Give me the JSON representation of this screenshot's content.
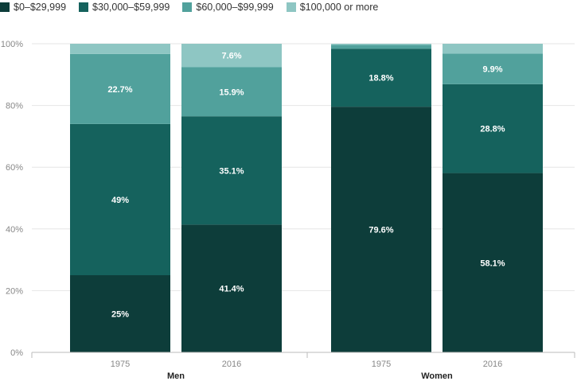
{
  "chart_data": {
    "type": "bar",
    "stacked": true,
    "categories": [
      "1975",
      "2016",
      "1975",
      "2016"
    ],
    "groups": [
      {
        "label": "Men",
        "categories": [
          "1975",
          "2016"
        ]
      },
      {
        "label": "Women",
        "categories": [
          "1975",
          "2016"
        ]
      }
    ],
    "series": [
      {
        "name": "$0–$29,999",
        "color": "#0d3d3a",
        "values": [
          25,
          41.4,
          79.6,
          58.1
        ],
        "labels": [
          "25%",
          "41.4%",
          "79.6%",
          "58.1%"
        ]
      },
      {
        "name": "$30,000–$59,999",
        "color": "#15625d",
        "values": [
          49,
          35.1,
          18.8,
          28.8
        ],
        "labels": [
          "49%",
          "35.1%",
          "18.8%",
          "28.8%"
        ]
      },
      {
        "name": "$60,000–$99,999",
        "color": "#51a19c",
        "values": [
          22.7,
          15.9,
          1.2,
          9.9
        ],
        "labels": [
          "22.7%",
          "15.9%",
          "",
          "9.9%"
        ]
      },
      {
        "name": "$100,000 or more",
        "color": "#8ec6c3",
        "values": [
          3.3,
          7.6,
          0.4,
          3.2
        ],
        "labels": [
          "",
          "7.6%",
          "",
          ""
        ]
      }
    ],
    "y_ticks": [
      "0%",
      "20%",
      "40%",
      "60%",
      "80%",
      "100%"
    ],
    "ylim": [
      0,
      100
    ],
    "grid": true,
    "legend_position": "top-left"
  }
}
